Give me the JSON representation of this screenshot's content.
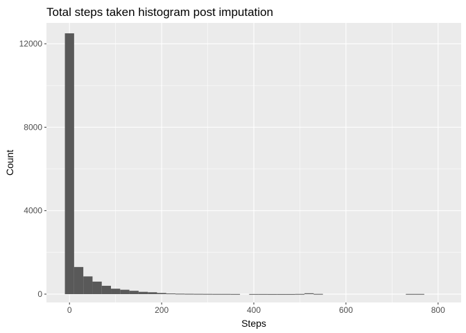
{
  "chart_data": {
    "type": "bar",
    "title": "Total steps taken histogram post imputation",
    "xlabel": "Steps",
    "ylabel": "Count",
    "xlim": [
      -50,
      850
    ],
    "ylim": [
      -400,
      13000
    ],
    "xticks": [
      0,
      200,
      400,
      600,
      800
    ],
    "yticks": [
      0,
      4000,
      8000,
      12000
    ],
    "xtick_labels": [
      "0",
      "200",
      "400",
      "600",
      "800"
    ],
    "ytick_labels": [
      "0",
      "4000",
      "8000",
      "12000"
    ],
    "grid": true,
    "bin_width": 20,
    "bins": [
      {
        "x0": -10,
        "x1": 10,
        "count": 12500
      },
      {
        "x0": 10,
        "x1": 30,
        "count": 1300
      },
      {
        "x0": 30,
        "x1": 50,
        "count": 850
      },
      {
        "x0": 50,
        "x1": 70,
        "count": 600
      },
      {
        "x0": 70,
        "x1": 90,
        "count": 400
      },
      {
        "x0": 90,
        "x1": 110,
        "count": 260
      },
      {
        "x0": 110,
        "x1": 130,
        "count": 210
      },
      {
        "x0": 130,
        "x1": 150,
        "count": 160
      },
      {
        "x0": 150,
        "x1": 170,
        "count": 110
      },
      {
        "x0": 170,
        "x1": 190,
        "count": 90
      },
      {
        "x0": 190,
        "x1": 210,
        "count": 55
      },
      {
        "x0": 210,
        "x1": 230,
        "count": 30
      },
      {
        "x0": 230,
        "x1": 250,
        "count": 20
      },
      {
        "x0": 250,
        "x1": 270,
        "count": 15
      },
      {
        "x0": 270,
        "x1": 290,
        "count": 12
      },
      {
        "x0": 290,
        "x1": 310,
        "count": 10
      },
      {
        "x0": 310,
        "x1": 330,
        "count": 8
      },
      {
        "x0": 330,
        "x1": 350,
        "count": 8
      },
      {
        "x0": 350,
        "x1": 370,
        "count": 6
      },
      {
        "x0": 390,
        "x1": 410,
        "count": 5
      },
      {
        "x0": 410,
        "x1": 430,
        "count": 5
      },
      {
        "x0": 430,
        "x1": 450,
        "count": 4
      },
      {
        "x0": 450,
        "x1": 470,
        "count": 4
      },
      {
        "x0": 470,
        "x1": 490,
        "count": 4
      },
      {
        "x0": 490,
        "x1": 510,
        "count": 8
      },
      {
        "x0": 510,
        "x1": 530,
        "count": 40
      },
      {
        "x0": 530,
        "x1": 550,
        "count": 10
      },
      {
        "x0": 730,
        "x1": 750,
        "count": 8
      },
      {
        "x0": 750,
        "x1": 770,
        "count": 8
      }
    ],
    "colors": {
      "panel_background": "#ebebeb",
      "grid_major": "#ffffff",
      "bar_fill": "#595959"
    }
  }
}
